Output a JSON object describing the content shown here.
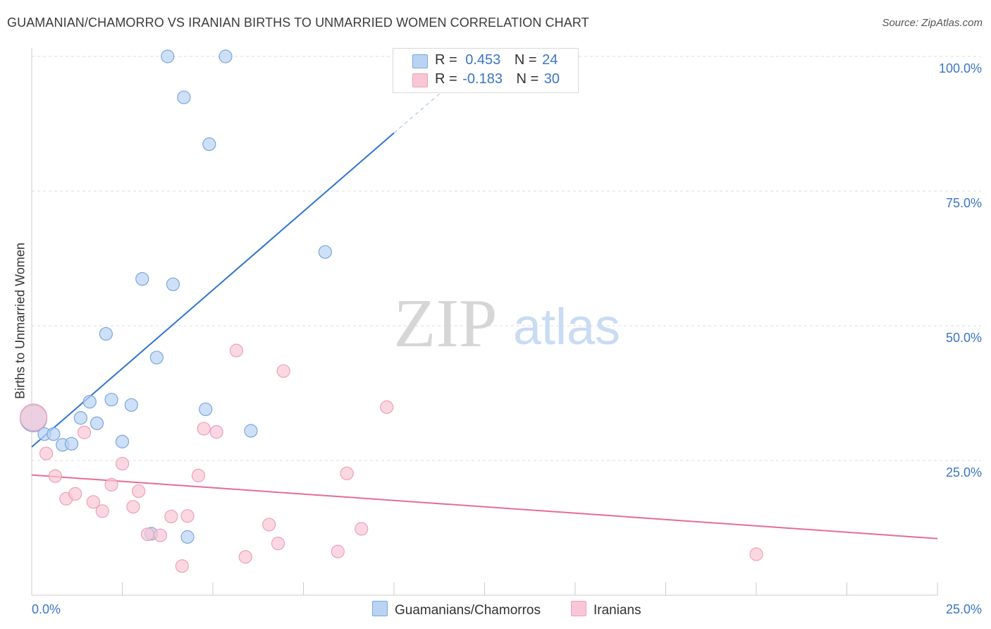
{
  "title": "GUAMANIAN/CHAMORRO VS IRANIAN BIRTHS TO UNMARRIED WOMEN CORRELATION CHART",
  "source": "Source: ZipAtlas.com",
  "watermark": {
    "zip": "ZIP",
    "atlas": "atlas"
  },
  "colors": {
    "blue_fill": "#b9d3f3",
    "blue_stroke": "#7aa6dc",
    "blue_line": "#2e74d0",
    "pink_fill": "#f9c6d5",
    "pink_stroke": "#eea0b7",
    "pink_line": "#e66c96",
    "axis_label": "#3a75c4",
    "grid": "#dddddd"
  },
  "legend": {
    "row1": {
      "r_label": "R =",
      "r_value": "0.453",
      "n_label": "N =",
      "n_value": "24"
    },
    "row2": {
      "r_label": "R =",
      "r_value": "-0.183",
      "n_label": "N =",
      "n_value": "30"
    }
  },
  "bottom_legend": {
    "blue": "Guamanians/Chamorros",
    "pink": "Iranians"
  },
  "chart_data": {
    "type": "scatter",
    "xlabel": "",
    "ylabel": "Births to Unmarried Women",
    "xlim": [
      0,
      25
    ],
    "ylim": [
      0,
      100
    ],
    "x_tick_labels": [
      {
        "value": 0,
        "label": "0.0%"
      },
      {
        "value": 25,
        "label": "25.0%"
      }
    ],
    "y_tick_labels": [
      {
        "value": 100,
        "label": "100.0%"
      },
      {
        "value": 75,
        "label": "75.0%"
      },
      {
        "value": 50,
        "label": "50.0%"
      },
      {
        "value": 25,
        "label": "25.0%"
      }
    ],
    "grid": true,
    "series": [
      {
        "name": "Guamanians/Chamorros",
        "color": "#b9d3f3",
        "points": [
          {
            "x": 0.05,
            "y": 32.8,
            "big": true
          },
          {
            "x": 0.35,
            "y": 29.9
          },
          {
            "x": 0.6,
            "y": 29.9
          },
          {
            "x": 0.85,
            "y": 27.9
          },
          {
            "x": 1.1,
            "y": 28.1
          },
          {
            "x": 1.35,
            "y": 32.9
          },
          {
            "x": 1.6,
            "y": 35.9
          },
          {
            "x": 1.8,
            "y": 31.9
          },
          {
            "x": 2.05,
            "y": 48.5
          },
          {
            "x": 2.2,
            "y": 36.3
          },
          {
            "x": 2.5,
            "y": 28.5
          },
          {
            "x": 2.75,
            "y": 35.3
          },
          {
            "x": 3.05,
            "y": 58.7
          },
          {
            "x": 3.3,
            "y": 11.4
          },
          {
            "x": 3.45,
            "y": 44.1
          },
          {
            "x": 3.75,
            "y": 100.0
          },
          {
            "x": 3.9,
            "y": 57.7
          },
          {
            "x": 4.2,
            "y": 92.4
          },
          {
            "x": 4.3,
            "y": 10.8
          },
          {
            "x": 4.8,
            "y": 34.5
          },
          {
            "x": 4.9,
            "y": 83.7
          },
          {
            "x": 5.35,
            "y": 100.0
          },
          {
            "x": 6.05,
            "y": 30.5
          },
          {
            "x": 8.1,
            "y": 63.7
          }
        ]
      },
      {
        "name": "Iranians",
        "color": "#f9c6d5",
        "points": [
          {
            "x": 0.05,
            "y": 33.0,
            "big": true
          },
          {
            "x": 0.4,
            "y": 26.3
          },
          {
            "x": 0.65,
            "y": 22.1
          },
          {
            "x": 0.95,
            "y": 17.9
          },
          {
            "x": 1.2,
            "y": 18.8
          },
          {
            "x": 1.45,
            "y": 30.2
          },
          {
            "x": 1.7,
            "y": 17.3
          },
          {
            "x": 1.95,
            "y": 15.6
          },
          {
            "x": 2.2,
            "y": 20.5
          },
          {
            "x": 2.5,
            "y": 24.4
          },
          {
            "x": 2.8,
            "y": 16.4
          },
          {
            "x": 2.95,
            "y": 19.3
          },
          {
            "x": 3.2,
            "y": 11.3
          },
          {
            "x": 3.55,
            "y": 11.1
          },
          {
            "x": 3.85,
            "y": 14.6
          },
          {
            "x": 4.15,
            "y": 5.4
          },
          {
            "x": 4.3,
            "y": 14.7
          },
          {
            "x": 4.6,
            "y": 22.2
          },
          {
            "x": 4.75,
            "y": 30.9
          },
          {
            "x": 5.1,
            "y": 30.3
          },
          {
            "x": 5.65,
            "y": 45.4
          },
          {
            "x": 5.9,
            "y": 7.1
          },
          {
            "x": 6.55,
            "y": 13.1
          },
          {
            "x": 6.8,
            "y": 9.6
          },
          {
            "x": 6.95,
            "y": 41.6
          },
          {
            "x": 8.45,
            "y": 8.1
          },
          {
            "x": 8.7,
            "y": 22.6
          },
          {
            "x": 9.1,
            "y": 12.3
          },
          {
            "x": 9.8,
            "y": 34.9
          },
          {
            "x": 20.0,
            "y": 7.6
          }
        ]
      }
    ],
    "trend_lines": [
      {
        "series": "Guamanians/Chamorros",
        "x_start": 0,
        "y_start": 27.5,
        "x_end": 10.0,
        "y_end": 85.8,
        "dash_x_end": 11.3,
        "dash_y_end": 93.3
      },
      {
        "series": "Iranians",
        "x_start": 0,
        "y_start": 22.3,
        "x_end": 25,
        "y_end": 10.5
      }
    ]
  }
}
